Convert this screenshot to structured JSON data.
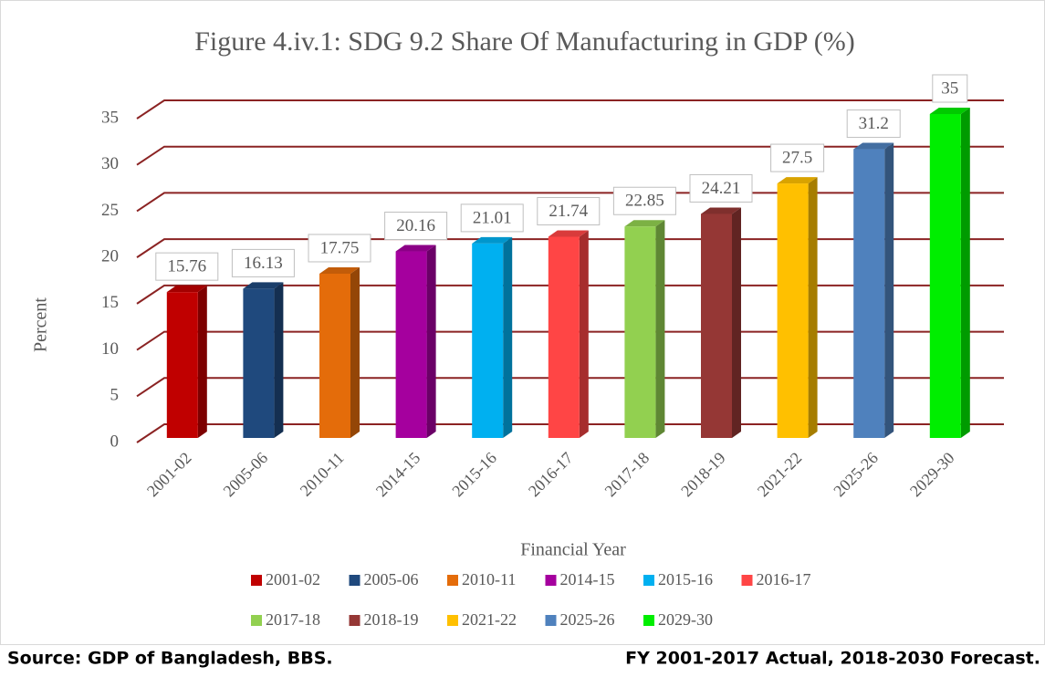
{
  "chart_data": {
    "type": "bar3d",
    "title": "Figure 4.iv.1: SDG 9.2 Share Of Manufacturing in GDP (%)",
    "x_label": "Financial Year",
    "y_label": "Percent",
    "categories": [
      "2001-02",
      "2005-06",
      "2010-11",
      "2014-15",
      "2015-16",
      "2016-17",
      "2017-18",
      "2018-19",
      "2021-22",
      "2025-26",
      "2029-30"
    ],
    "values": [
      15.76,
      16.13,
      17.75,
      20.16,
      21.01,
      21.74,
      22.85,
      24.21,
      27.5,
      31.2,
      35
    ],
    "colors": [
      "#c00000",
      "#1f497d",
      "#e46c0a",
      "#a5009e",
      "#00b0f0",
      "#ff4545",
      "#92d050",
      "#953735",
      "#ffc000",
      "#4f81bd",
      "#00ee00"
    ],
    "ylim": [
      0,
      35
    ],
    "yticks": [
      0,
      5,
      10,
      15,
      20,
      25,
      30,
      35
    ],
    "grid": true,
    "legend": "bottom"
  },
  "source": "Source: GDP of Bangladesh, BBS.",
  "note": "FY 2001-2017 Actual, 2018-2030 Forecast."
}
